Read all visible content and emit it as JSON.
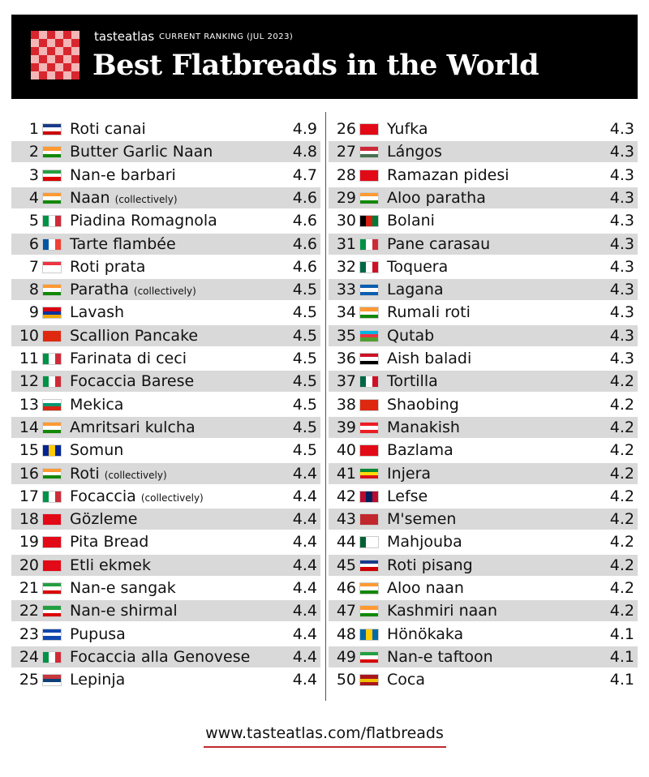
{
  "header": {
    "brand": "tasteatlas",
    "subtitle": "CURRENT RANKING (JUL 2023)",
    "title": "Best Flatbreads in the World"
  },
  "table": {
    "rows": [
      {
        "rank": 1,
        "name": "Roti canai",
        "rating": 4.9
      },
      {
        "rank": 2,
        "name": "Butter Garlic Naan",
        "rating": 4.8
      },
      {
        "rank": 3,
        "name": "Nan-e barbari",
        "rating": 4.7
      },
      {
        "rank": 4,
        "name": "Naan",
        "note": "(collectively)",
        "rating": 4.6
      },
      {
        "rank": 5,
        "name": "Piadina Romagnola",
        "rating": 4.6
      },
      {
        "rank": 6,
        "name": "Tarte flambée",
        "rating": 4.6
      },
      {
        "rank": 7,
        "name": "Roti prata",
        "rating": 4.6
      },
      {
        "rank": 8,
        "name": "Paratha",
        "note": "(collectively)",
        "rating": 4.5
      },
      {
        "rank": 9,
        "name": "Lavash",
        "rating": 4.5
      },
      {
        "rank": 10,
        "name": "Scallion Pancake",
        "rating": 4.5
      },
      {
        "rank": 11,
        "name": "Farinata di ceci",
        "rating": 4.5
      },
      {
        "rank": 12,
        "name": "Focaccia Barese",
        "rating": 4.5
      },
      {
        "rank": 13,
        "name": "Mekica",
        "rating": 4.5
      },
      {
        "rank": 14,
        "name": "Amritsari kulcha",
        "rating": 4.5
      },
      {
        "rank": 15,
        "name": "Somun",
        "rating": 4.5
      },
      {
        "rank": 16,
        "name": "Roti",
        "note": "(collectively)",
        "rating": 4.4
      },
      {
        "rank": 17,
        "name": "Focaccia",
        "note": "(collectively)",
        "rating": 4.4
      },
      {
        "rank": 18,
        "name": "Gözleme",
        "rating": 4.4
      },
      {
        "rank": 19,
        "name": "Pita Bread",
        "rating": 4.4
      },
      {
        "rank": 20,
        "name": "Etli ekmek",
        "rating": 4.4
      },
      {
        "rank": 21,
        "name": "Nan-e sangak",
        "rating": 4.4
      },
      {
        "rank": 22,
        "name": "Nan-e shirmal",
        "rating": 4.4
      },
      {
        "rank": 23,
        "name": "Pupusa",
        "rating": 4.4
      },
      {
        "rank": 24,
        "name": "Focaccia alla Genovese",
        "rating": 4.4
      },
      {
        "rank": 25,
        "name": "Lepinja",
        "rating": 4.4
      },
      {
        "rank": 26,
        "name": "Yufka",
        "rating": 4.3
      },
      {
        "rank": 27,
        "name": "Lángos",
        "rating": 4.3
      },
      {
        "rank": 28,
        "name": "Ramazan pidesi",
        "rating": 4.3
      },
      {
        "rank": 29,
        "name": "Aloo paratha",
        "rating": 4.3
      },
      {
        "rank": 30,
        "name": "Bolani",
        "rating": 4.3
      },
      {
        "rank": 31,
        "name": "Pane carasau",
        "rating": 4.3
      },
      {
        "rank": 32,
        "name": "Toquera",
        "rating": 4.3
      },
      {
        "rank": 33,
        "name": "Lagana",
        "rating": 4.3
      },
      {
        "rank": 34,
        "name": "Rumali roti",
        "rating": 4.3
      },
      {
        "rank": 35,
        "name": "Qutab",
        "rating": 4.3
      },
      {
        "rank": 36,
        "name": "Aish baladi",
        "rating": 4.3
      },
      {
        "rank": 37,
        "name": "Tortilla",
        "rating": 4.2
      },
      {
        "rank": 38,
        "name": "Shaobing",
        "rating": 4.2
      },
      {
        "rank": 39,
        "name": "Manakish",
        "rating": 4.2
      },
      {
        "rank": 40,
        "name": "Bazlama",
        "rating": 4.2
      },
      {
        "rank": 41,
        "name": "Injera",
        "rating": 4.2
      },
      {
        "rank": 42,
        "name": "Lefse",
        "rating": 4.2
      },
      {
        "rank": 43,
        "name": "M'semen",
        "rating": 4.2
      },
      {
        "rank": 44,
        "name": "Mahjouba",
        "rating": 4.2
      },
      {
        "rank": 45,
        "name": "Roti pisang",
        "rating": 4.2
      },
      {
        "rank": 46,
        "name": "Aloo naan",
        "rating": 4.2
      },
      {
        "rank": 47,
        "name": "Kashmiri naan",
        "rating": 4.2
      },
      {
        "rank": 48,
        "name": "Hönökaka",
        "rating": 4.1
      },
      {
        "rank": 49,
        "name": "Nan-e taftoon",
        "rating": 4.1
      },
      {
        "rank": 50,
        "name": "Coca",
        "rating": 4.1
      }
    ]
  },
  "footer": {
    "url": "www.tasteatlas.com/flatbreads"
  }
}
